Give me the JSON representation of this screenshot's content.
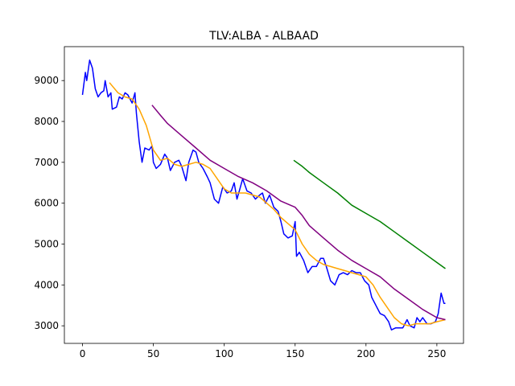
{
  "chart_data": {
    "type": "line",
    "title": "TLV:ALBA - ALBAAD",
    "xlim": [
      -12.8,
      268.8
    ],
    "xticks": [
      0,
      50,
      100,
      150,
      200,
      250
    ],
    "ylim": [
      2570,
      9830
    ],
    "yticks": [
      3000,
      4000,
      5000,
      6000,
      7000,
      8000,
      9000
    ],
    "series": [
      {
        "color": "blue",
        "x": [
          0,
          2,
          3,
          5,
          7,
          9,
          11,
          13,
          15,
          16,
          18,
          20,
          21,
          24,
          26,
          28,
          30,
          32,
          35,
          37,
          38,
          40,
          42,
          44,
          47,
          49,
          50,
          52,
          55,
          58,
          60,
          62,
          65,
          68,
          70,
          73,
          75,
          78,
          80,
          82,
          85,
          88,
          90,
          93,
          96,
          99,
          102,
          105,
          107,
          109,
          111,
          113,
          116,
          119,
          122,
          125,
          127,
          129,
          132,
          135,
          138,
          140,
          142,
          145,
          148,
          150,
          151,
          153,
          156,
          159,
          162,
          165,
          168,
          170,
          172,
          175,
          178,
          181,
          184,
          187,
          190,
          193,
          196,
          199,
          202,
          204,
          207,
          210,
          213,
          216,
          218,
          221,
          224,
          226,
          229,
          231,
          234,
          236,
          238,
          240,
          243,
          246,
          249,
          251,
          253,
          255,
          256
        ],
        "values": [
          8650,
          9200,
          9000,
          9500,
          9300,
          8800,
          8600,
          8700,
          8750,
          9000,
          8600,
          8700,
          8300,
          8350,
          8600,
          8550,
          8700,
          8650,
          8450,
          8700,
          8200,
          7500,
          7000,
          7350,
          7300,
          7400,
          7000,
          6850,
          6950,
          7200,
          7100,
          6800,
          7000,
          7050,
          6900,
          6550,
          7000,
          7300,
          7250,
          7000,
          6850,
          6650,
          6500,
          6100,
          6000,
          6400,
          6250,
          6300,
          6500,
          6100,
          6350,
          6600,
          6300,
          6250,
          6100,
          6200,
          6250,
          6000,
          6200,
          5900,
          5800,
          5550,
          5250,
          5150,
          5200,
          5550,
          4700,
          4800,
          4600,
          4300,
          4450,
          4450,
          4650,
          4650,
          4450,
          4100,
          4000,
          4250,
          4300,
          4250,
          4350,
          4300,
          4300,
          4100,
          4000,
          3700,
          3500,
          3300,
          3250,
          3100,
          2900,
          2950,
          2950,
          2950,
          3150,
          3000,
          2950,
          3200,
          3100,
          3200,
          3050,
          3050,
          3100,
          3300,
          3800,
          3550,
          3550
        ]
      },
      {
        "color": "orange",
        "x": [
          19,
          25,
          30,
          35,
          40,
          45,
          50,
          55,
          60,
          65,
          70,
          75,
          80,
          85,
          90,
          95,
          100,
          105,
          110,
          115,
          120,
          125,
          130,
          135,
          140,
          145,
          150,
          155,
          160,
          165,
          170,
          175,
          180,
          185,
          190,
          195,
          200,
          205,
          210,
          215,
          220,
          225,
          230,
          235,
          240,
          245,
          250,
          256
        ],
        "values": [
          8950,
          8700,
          8600,
          8550,
          8300,
          7900,
          7300,
          7050,
          7100,
          6950,
          6900,
          6950,
          7000,
          6950,
          6850,
          6600,
          6350,
          6250,
          6250,
          6250,
          6200,
          6150,
          6000,
          5850,
          5650,
          5500,
          5350,
          5000,
          4750,
          4600,
          4500,
          4450,
          4400,
          4350,
          4300,
          4250,
          4200,
          4000,
          3700,
          3450,
          3200,
          3050,
          3000,
          3050,
          3050,
          3050,
          3100,
          3150
        ]
      },
      {
        "color": "purple",
        "x": [
          49,
          55,
          60,
          70,
          80,
          90,
          100,
          110,
          120,
          130,
          140,
          150,
          155,
          160,
          170,
          180,
          190,
          200,
          210,
          220,
          230,
          240,
          250,
          256
        ],
        "values": [
          8400,
          8150,
          7950,
          7650,
          7350,
          7050,
          6850,
          6650,
          6500,
          6300,
          6050,
          5900,
          5700,
          5450,
          5150,
          4850,
          4600,
          4400,
          4200,
          3900,
          3650,
          3400,
          3200,
          3150
        ]
      },
      {
        "color": "green",
        "x": [
          149,
          155,
          160,
          170,
          180,
          190,
          200,
          210,
          220,
          230,
          240,
          250,
          256
        ],
        "values": [
          7050,
          6900,
          6750,
          6500,
          6250,
          5950,
          5750,
          5550,
          5300,
          5050,
          4800,
          4550,
          4400
        ]
      }
    ]
  }
}
